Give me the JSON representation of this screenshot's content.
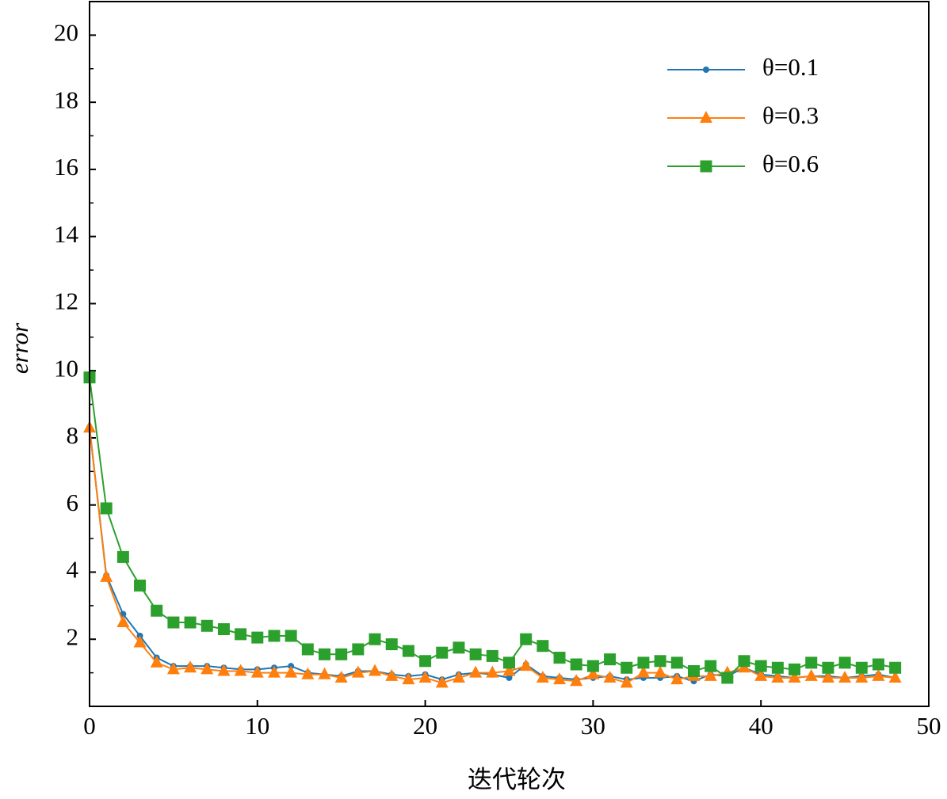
{
  "chart_data": {
    "type": "line",
    "xlabel": "迭代轮次",
    "ylabel": "error",
    "x": [
      0,
      1,
      2,
      3,
      4,
      5,
      6,
      7,
      8,
      9,
      10,
      11,
      12,
      13,
      14,
      15,
      16,
      17,
      18,
      19,
      20,
      21,
      22,
      23,
      24,
      25,
      26,
      27,
      28,
      29,
      30,
      31,
      32,
      33,
      34,
      35,
      36,
      37,
      38,
      39,
      40,
      41,
      42,
      43,
      44,
      45,
      46,
      47,
      48
    ],
    "series": [
      {
        "name": "θ=0.1",
        "color": "#1f77b4",
        "marker": "circle",
        "values": [
          8.3,
          3.9,
          2.75,
          2.1,
          1.45,
          1.2,
          1.2,
          1.2,
          1.15,
          1.1,
          1.1,
          1.15,
          1.2,
          1.0,
          0.95,
          0.9,
          1.05,
          1.05,
          0.95,
          0.9,
          0.95,
          0.8,
          0.95,
          1.0,
          0.95,
          0.85,
          1.25,
          0.9,
          0.85,
          0.8,
          0.85,
          0.9,
          0.8,
          0.85,
          0.85,
          0.9,
          0.75,
          0.95,
          0.9,
          1.15,
          0.95,
          0.9,
          0.85,
          0.9,
          0.9,
          0.85,
          0.9,
          0.95,
          0.85
        ]
      },
      {
        "name": "θ=0.3",
        "color": "#ff7f0e",
        "marker": "triangle",
        "values": [
          8.3,
          3.85,
          2.5,
          1.9,
          1.3,
          1.1,
          1.15,
          1.1,
          1.05,
          1.05,
          1.0,
          1.0,
          1.0,
          0.95,
          0.95,
          0.85,
          1.0,
          1.05,
          0.9,
          0.8,
          0.85,
          0.7,
          0.85,
          1.0,
          1.0,
          1.05,
          1.2,
          0.85,
          0.8,
          0.75,
          0.95,
          0.85,
          0.7,
          1.0,
          1.0,
          0.8,
          0.9,
          0.9,
          1.0,
          1.15,
          0.9,
          0.85,
          0.85,
          0.9,
          0.85,
          0.85,
          0.85,
          0.9,
          0.85
        ]
      },
      {
        "name": "θ=0.6",
        "color": "#2ca02c",
        "marker": "square",
        "values": [
          9.8,
          5.9,
          4.45,
          3.6,
          2.85,
          2.5,
          2.5,
          2.4,
          2.3,
          2.15,
          2.05,
          2.1,
          2.1,
          1.7,
          1.55,
          1.55,
          1.7,
          2.0,
          1.85,
          1.65,
          1.35,
          1.6,
          1.75,
          1.55,
          1.5,
          1.3,
          2.0,
          1.8,
          1.45,
          1.25,
          1.2,
          1.4,
          1.15,
          1.3,
          1.35,
          1.3,
          1.05,
          1.2,
          0.85,
          1.35,
          1.2,
          1.15,
          1.1,
          1.3,
          1.15,
          1.3,
          1.15,
          1.25,
          1.15
        ]
      }
    ],
    "xlim": [
      0,
      50
    ],
    "xticks": [
      0,
      10,
      20,
      30,
      40,
      50
    ],
    "ylim": [
      0,
      21
    ],
    "yticks": [
      2,
      4,
      6,
      8,
      10,
      12,
      14,
      16,
      18,
      20
    ],
    "yminorticks": [
      1,
      3,
      5,
      7,
      9,
      11,
      13,
      15,
      17,
      19
    ],
    "legend": "upper right",
    "grid": false
  }
}
